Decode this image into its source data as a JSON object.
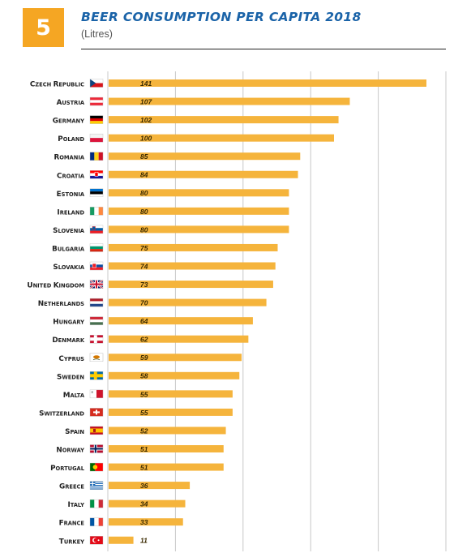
{
  "header": {
    "number": "5",
    "title": "BEER CONSUMPTION PER CAPITA 2018",
    "subtitle": "(Litres)"
  },
  "colors": {
    "bar": "#f5b43c",
    "badge": "#f5a623",
    "title": "#1a63a8",
    "grid": "#c8c8c8"
  },
  "chart_data": {
    "type": "bar",
    "orientation": "horizontal",
    "title": "BEER CONSUMPTION PER CAPITA 2018",
    "subtitle": "(Litres)",
    "xlabel": "",
    "ylabel": "",
    "xlim": [
      0,
      150
    ],
    "grid": true,
    "categories": [
      "Czech Republic",
      "Austria",
      "Germany",
      "Poland",
      "Romania",
      "Croatia",
      "Estonia",
      "Ireland",
      "Slovenia",
      "Bulgaria",
      "Slovakia",
      "United Kingdom",
      "Netherlands",
      "Hungary",
      "Denmark",
      "Cyprus",
      "Sweden",
      "Malta",
      "Switzerland",
      "Spain",
      "Norway",
      "Portugal",
      "Greece",
      "Italy",
      "France",
      "Turkey"
    ],
    "values": [
      141,
      107,
      102,
      100,
      85,
      84,
      80,
      80,
      80,
      75,
      74,
      73,
      70,
      64,
      62,
      59,
      58,
      55,
      55,
      52,
      51,
      51,
      36,
      34,
      33,
      11
    ],
    "flag_icons": [
      "czech-flag-icon",
      "austria-flag-icon",
      "germany-flag-icon",
      "poland-flag-icon",
      "romania-flag-icon",
      "croatia-flag-icon",
      "estonia-flag-icon",
      "ireland-flag-icon",
      "slovenia-flag-icon",
      "bulgaria-flag-icon",
      "slovakia-flag-icon",
      "uk-flag-icon",
      "netherlands-flag-icon",
      "hungary-flag-icon",
      "denmark-flag-icon",
      "cyprus-flag-icon",
      "sweden-flag-icon",
      "malta-flag-icon",
      "switzerland-flag-icon",
      "spain-flag-icon",
      "norway-flag-icon",
      "portugal-flag-icon",
      "greece-flag-icon",
      "italy-flag-icon",
      "france-flag-icon",
      "turkey-flag-icon"
    ]
  }
}
